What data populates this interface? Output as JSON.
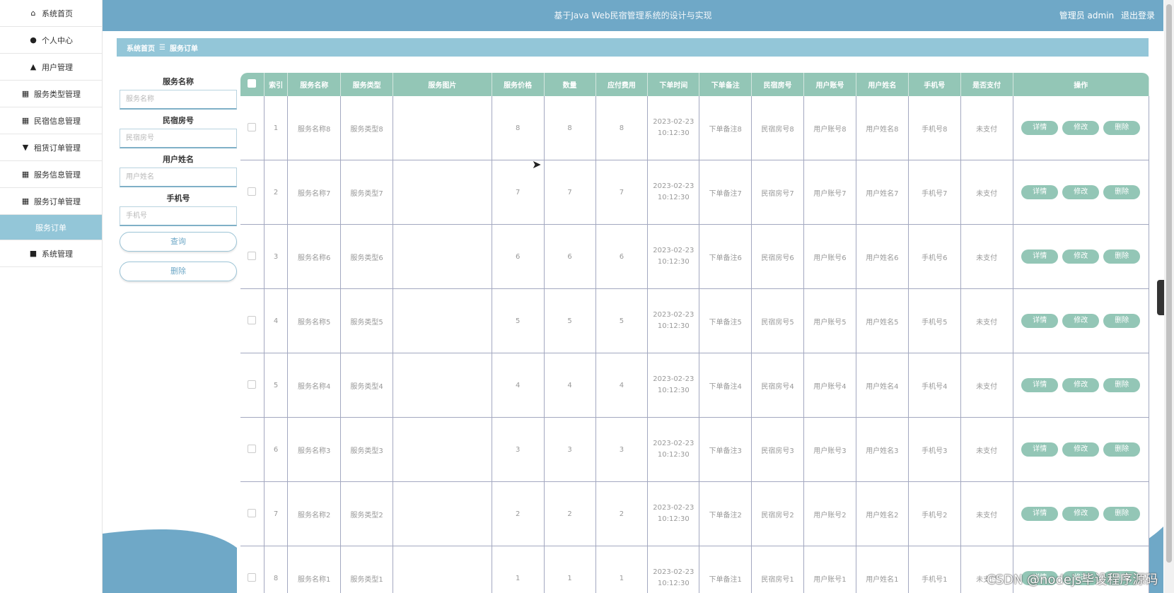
{
  "header": {
    "title": "基于Java Web民宿管理系统的设计与实现",
    "user_label": "管理员 admin",
    "logout": "退出登录"
  },
  "sidebar": {
    "items": [
      {
        "label": "系统首页",
        "icon": "home-icon",
        "glyph": "⌂"
      },
      {
        "label": "个人中心",
        "icon": "person-icon",
        "glyph": "●"
      },
      {
        "label": "用户管理",
        "icon": "user-icon",
        "glyph": "▲"
      },
      {
        "label": "服务类型管理",
        "icon": "grid-icon",
        "glyph": "▦"
      },
      {
        "label": "民宿信息管理",
        "icon": "grid-icon",
        "glyph": "▦"
      },
      {
        "label": "租赁订单管理",
        "icon": "pin-icon",
        "glyph": "▼"
      },
      {
        "label": "服务信息管理",
        "icon": "table-icon",
        "glyph": "▦"
      },
      {
        "label": "服务订单管理",
        "icon": "grid-icon",
        "glyph": "▦"
      },
      {
        "label": "服务订单",
        "icon": "",
        "glyph": ""
      },
      {
        "label": "系统管理",
        "icon": "briefcase-icon",
        "glyph": "■"
      }
    ]
  },
  "breadcrumb": {
    "home": "系统首页",
    "sep": "☰",
    "current": "服务订单"
  },
  "search": {
    "fields": [
      {
        "label": "服务名称",
        "placeholder": "服务名称"
      },
      {
        "label": "民宿房号",
        "placeholder": "民宿房号"
      },
      {
        "label": "用户姓名",
        "placeholder": "用户姓名"
      },
      {
        "label": "手机号",
        "placeholder": "手机号"
      }
    ],
    "query_btn": "查询",
    "delete_btn": "删除"
  },
  "table": {
    "columns": [
      "索引",
      "服务名称",
      "服务类型",
      "服务图片",
      "服务价格",
      "数量",
      "应付费用",
      "下单时间",
      "下单备注",
      "民宿房号",
      "用户账号",
      "用户姓名",
      "手机号",
      "是否支付",
      "操作"
    ],
    "actions": [
      "详情",
      "修改",
      "删除"
    ],
    "rows": [
      {
        "idx": "1",
        "name": "服务名称8",
        "type": "服务类型8",
        "img": "",
        "price": "8",
        "qty": "8",
        "fee": "8",
        "date": "2023-02-23",
        "time": "10:12:30",
        "note": "下单备注8",
        "room": "民宿房号8",
        "account": "用户账号8",
        "uname": "用户姓名8",
        "phone": "手机号8",
        "paid": "未支付"
      },
      {
        "idx": "2",
        "name": "服务名称7",
        "type": "服务类型7",
        "img": "",
        "price": "7",
        "qty": "7",
        "fee": "7",
        "date": "2023-02-23",
        "time": "10:12:30",
        "note": "下单备注7",
        "room": "民宿房号7",
        "account": "用户账号7",
        "uname": "用户姓名7",
        "phone": "手机号7",
        "paid": "未支付"
      },
      {
        "idx": "3",
        "name": "服务名称6",
        "type": "服务类型6",
        "img": "",
        "price": "6",
        "qty": "6",
        "fee": "6",
        "date": "2023-02-23",
        "time": "10:12:30",
        "note": "下单备注6",
        "room": "民宿房号6",
        "account": "用户账号6",
        "uname": "用户姓名6",
        "phone": "手机号6",
        "paid": "未支付"
      },
      {
        "idx": "4",
        "name": "服务名称5",
        "type": "服务类型5",
        "img": "",
        "price": "5",
        "qty": "5",
        "fee": "5",
        "date": "2023-02-23",
        "time": "10:12:30",
        "note": "下单备注5",
        "room": "民宿房号5",
        "account": "用户账号5",
        "uname": "用户姓名5",
        "phone": "手机号5",
        "paid": "未支付"
      },
      {
        "idx": "5",
        "name": "服务名称4",
        "type": "服务类型4",
        "img": "",
        "price": "4",
        "qty": "4",
        "fee": "4",
        "date": "2023-02-23",
        "time": "10:12:30",
        "note": "下单备注4",
        "room": "民宿房号4",
        "account": "用户账号4",
        "uname": "用户姓名4",
        "phone": "手机号4",
        "paid": "未支付"
      },
      {
        "idx": "6",
        "name": "服务名称3",
        "type": "服务类型3",
        "img": "",
        "price": "3",
        "qty": "3",
        "fee": "3",
        "date": "2023-02-23",
        "time": "10:12:30",
        "note": "下单备注3",
        "room": "民宿房号3",
        "account": "用户账号3",
        "uname": "用户姓名3",
        "phone": "手机号3",
        "paid": "未支付"
      },
      {
        "idx": "7",
        "name": "服务名称2",
        "type": "服务类型2",
        "img": "",
        "price": "2",
        "qty": "2",
        "fee": "2",
        "date": "2023-02-23",
        "time": "10:12:30",
        "note": "下单备注2",
        "room": "民宿房号2",
        "account": "用户账号2",
        "uname": "用户姓名2",
        "phone": "手机号2",
        "paid": "未支付"
      },
      {
        "idx": "8",
        "name": "服务名称1",
        "type": "服务类型1",
        "img": "",
        "price": "1",
        "qty": "1",
        "fee": "1",
        "date": "2023-02-23",
        "time": "10:12:30",
        "note": "下单备注1",
        "room": "民宿房号1",
        "account": "用户账号1",
        "uname": "用户姓名1",
        "phone": "手机号1",
        "paid": "未支付"
      }
    ]
  },
  "watermark": "CSDN @nodejs毕设程序源码",
  "right_tab_glyph": "›",
  "colors": {
    "header": "#6fa8c7",
    "accent": "#93c6d8",
    "table_header": "#93c6b6"
  }
}
